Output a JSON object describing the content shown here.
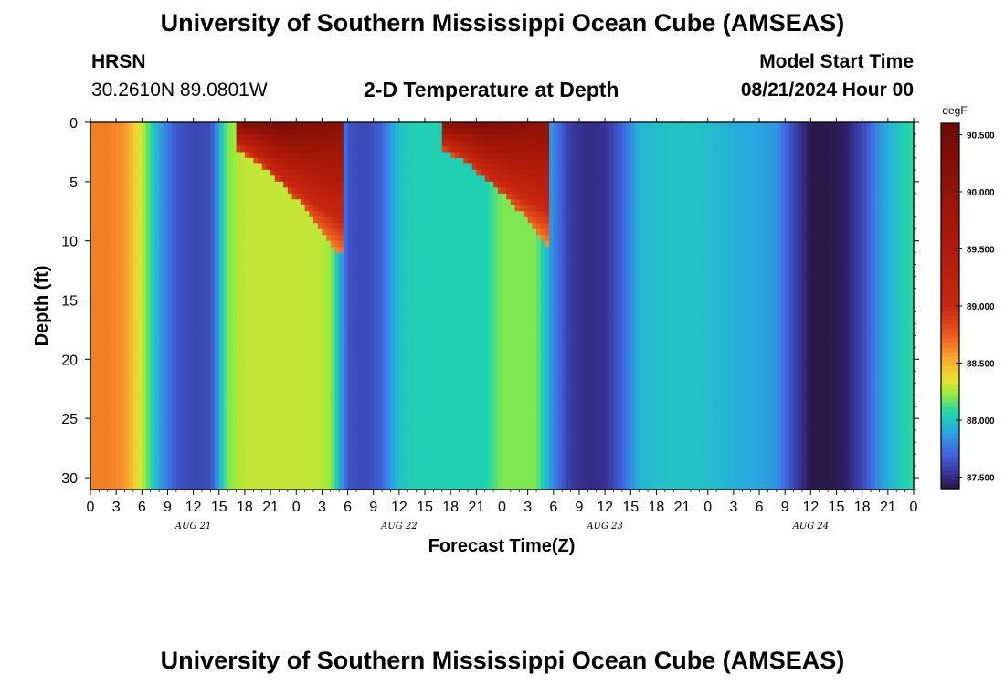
{
  "header": {
    "title": "University of Southern Mississippi Ocean Cube (AMSEAS)",
    "station": "HRSN",
    "coords": "30.2610N  89.0801W",
    "plot_title": "2-D Temperature at Depth",
    "model_label": "Model Start Time",
    "model_time": "08/21/2024 Hour 00"
  },
  "footer": {
    "title": "University of Southern Mississippi Ocean Cube (AMSEAS)"
  },
  "chart_data": {
    "type": "heatmap",
    "title": "2-D Temperature at Depth",
    "xlabel": "Forecast Time(Z)",
    "ylabel": "Depth (ft)",
    "x_ticks": [
      "0",
      "3",
      "6",
      "9",
      "12",
      "15",
      "18",
      "21",
      "0",
      "3",
      "6",
      "9",
      "12",
      "15",
      "18",
      "21",
      "0",
      "3",
      "6",
      "9",
      "12",
      "15",
      "18",
      "21",
      "0",
      "3",
      "6",
      "9",
      "12",
      "15",
      "18",
      "21",
      "0"
    ],
    "x_range_hours": [
      0,
      96
    ],
    "day_labels": [
      "AUG 21",
      "AUG 22",
      "AUG 23",
      "AUG 24"
    ],
    "y_ticks": [
      "0",
      "5",
      "10",
      "15",
      "20",
      "25",
      "30"
    ],
    "ylim": [
      0,
      31
    ],
    "colorbar": {
      "unit": "degF",
      "ticks": [
        "87.500",
        "88.000",
        "88.500",
        "89.000",
        "89.500",
        "90.000",
        "90.500"
      ],
      "range": [
        87.4,
        90.6
      ]
    },
    "column_profile_hours": [
      0,
      2,
      4,
      6,
      8,
      10,
      12,
      14,
      16,
      18,
      20,
      22,
      24,
      26,
      28,
      30,
      32,
      34,
      36,
      38,
      40,
      42,
      44,
      46,
      48,
      50,
      52,
      54,
      56,
      58,
      60,
      62,
      64,
      66,
      68,
      70,
      72,
      74,
      76,
      78,
      80,
      82,
      84,
      86,
      88,
      90,
      92,
      94,
      96
    ],
    "column_profile_degF": [
      88.65,
      88.65,
      88.6,
      88.3,
      87.9,
      87.65,
      87.6,
      87.62,
      88.2,
      88.3,
      88.3,
      88.3,
      88.3,
      88.3,
      88.25,
      87.65,
      87.6,
      87.7,
      88.0,
      88.05,
      88.05,
      88.05,
      88.05,
      88.05,
      88.2,
      88.2,
      88.2,
      87.8,
      87.55,
      87.5,
      87.52,
      87.7,
      87.95,
      87.98,
      88.0,
      88.0,
      87.98,
      87.95,
      87.92,
      87.9,
      87.85,
      87.6,
      87.42,
      87.42,
      87.45,
      87.6,
      87.85,
      88.0,
      88.1
    ],
    "warm_surface_events": [
      {
        "start_hour": 17,
        "end_hour": 29.5,
        "peak_degF": 90.45,
        "max_depth_ft": 11.5
      },
      {
        "start_hour": 41,
        "end_hour": 53.5,
        "peak_degF": 90.35,
        "max_depth_ft": 10.5
      }
    ]
  }
}
